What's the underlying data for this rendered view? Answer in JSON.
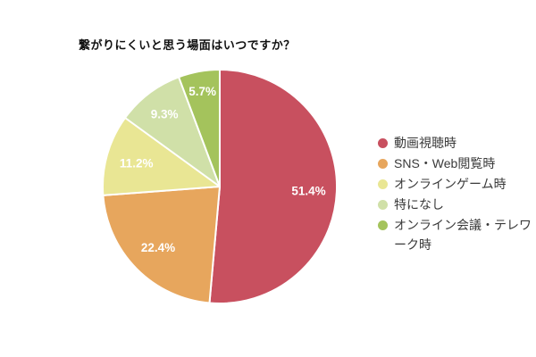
{
  "page": {
    "background": "#ffffff"
  },
  "chart_data": {
    "type": "pie",
    "title": "繋がりにくいと思う場面はいつですか？",
    "legend_position": "right",
    "direction": "clockwise",
    "start_angle_deg": 0,
    "total": 100,
    "label_color": "#ffffff",
    "slices": [
      {
        "label": "動画視聴時",
        "value": 51.4,
        "display": "51.4%",
        "color": "#c8505f",
        "label_r": 0.76
      },
      {
        "label": "SNS・Web閲覧時",
        "value": 22.4,
        "display": "22.4%",
        "color": "#e7a65d",
        "label_r": 0.74
      },
      {
        "label": "オンラインゲーム時",
        "value": 11.2,
        "display": "11.2%",
        "color": "#e9e694",
        "label_r": 0.74
      },
      {
        "label": "特になし",
        "value": 9.3,
        "display": "9.3%",
        "color": "#d0e0a8",
        "label_r": 0.78
      },
      {
        "label": "オンライン会議・テレワーク時",
        "value": 5.7,
        "display": "5.7%",
        "color": "#a4c35c",
        "label_r": 0.83
      }
    ]
  }
}
